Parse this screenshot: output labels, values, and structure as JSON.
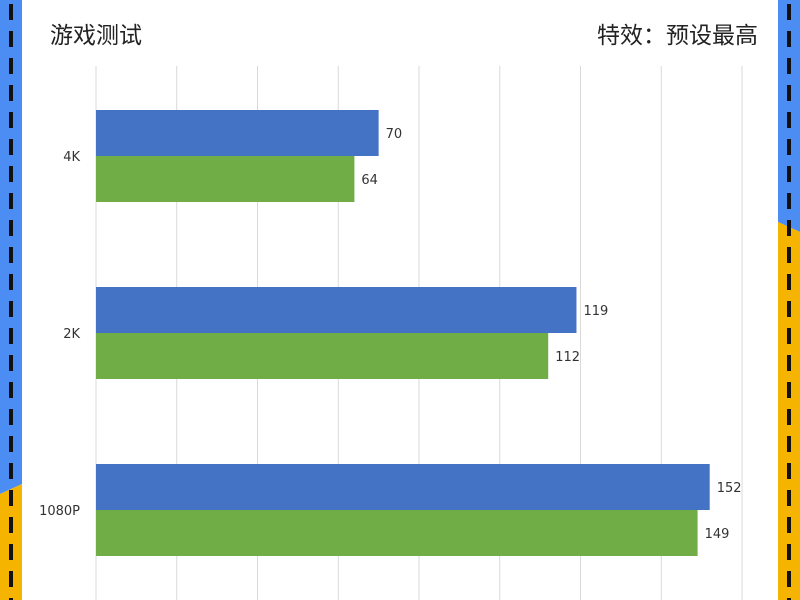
{
  "header": {
    "title": "游戏测试",
    "subtitle": "特效：预设最高"
  },
  "colors": {
    "series_1": "#4472c4",
    "series_2": "#70ad47",
    "frame_blue": "#4b8df2",
    "frame_yellow": "#f5b400",
    "dash": "#111111"
  },
  "chart_data": {
    "type": "bar",
    "orientation": "horizontal",
    "categories": [
      "4K",
      "2K",
      "1080P"
    ],
    "series": [
      {
        "values": [
          70,
          119,
          152
        ]
      },
      {
        "values": [
          64,
          112,
          149
        ]
      }
    ],
    "xlim": [
      0,
      160
    ],
    "x_grid_step": 20,
    "grid": true,
    "data_labels": true
  }
}
